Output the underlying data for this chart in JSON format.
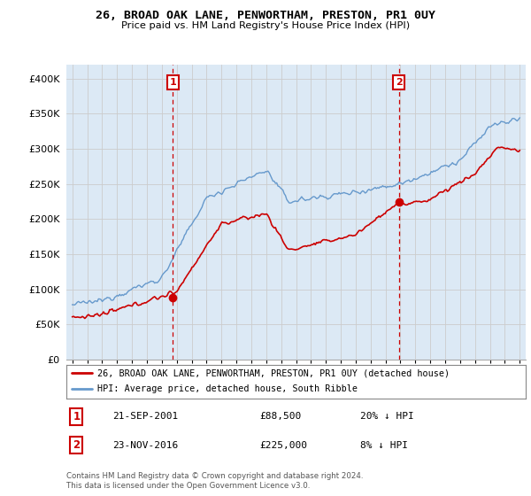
{
  "title": "26, BROAD OAK LANE, PENWORTHAM, PRESTON, PR1 0UY",
  "subtitle": "Price paid vs. HM Land Registry's House Price Index (HPI)",
  "ylim": [
    0,
    420000
  ],
  "yticks": [
    0,
    50000,
    100000,
    150000,
    200000,
    250000,
    300000,
    350000,
    400000
  ],
  "ytick_labels": [
    "£0",
    "£50K",
    "£100K",
    "£150K",
    "£200K",
    "£250K",
    "£300K",
    "£350K",
    "£400K"
  ],
  "sale1_date": 2001.75,
  "sale1_price": 88500,
  "sale2_date": 2016.9,
  "sale2_price": 225000,
  "sale1_text": "21-SEP-2001",
  "sale1_price_text": "£88,500",
  "sale1_hpi_text": "20% ↓ HPI",
  "sale2_text": "23-NOV-2016",
  "sale2_price_text": "£225,000",
  "sale2_hpi_text": "8% ↓ HPI",
  "red_color": "#cc0000",
  "blue_color": "#6699cc",
  "blue_fill": "#dce9f5",
  "bg_color": "#ffffff",
  "grid_color": "#cccccc",
  "footer": "Contains HM Land Registry data © Crown copyright and database right 2024.\nThis data is licensed under the Open Government Licence v3.0.",
  "legend_line1": "26, BROAD OAK LANE, PENWORTHAM, PRESTON, PR1 0UY (detached house)",
  "legend_line2": "HPI: Average price, detached house, South Ribble"
}
